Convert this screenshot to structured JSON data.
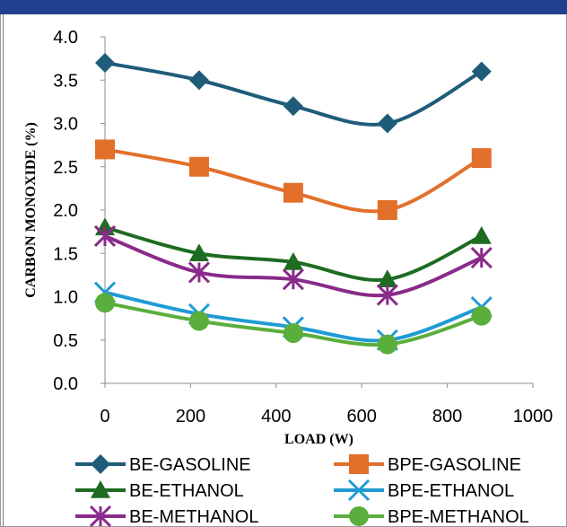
{
  "chart_data": {
    "type": "line",
    "title": "",
    "xlabel": "LOAD (W)",
    "ylabel": "CARBON MONOXIDE (%)",
    "xlim": [
      0,
      1000
    ],
    "ylim": [
      0,
      4
    ],
    "x_ticks": [
      "0",
      "200",
      "400",
      "600",
      "800",
      "1000"
    ],
    "y_ticks": [
      "0.0",
      "0.5",
      "1.0",
      "1.5",
      "2.0",
      "2.5",
      "3.0",
      "3.5",
      "4.0"
    ],
    "grid": false,
    "legend_position": "bottom",
    "x": [
      0,
      220,
      440,
      660,
      880
    ],
    "series": [
      {
        "name": "BE-GASOLINE",
        "values": [
          3.7,
          3.5,
          3.2,
          3.0,
          3.6
        ],
        "color": "#1f5c7a",
        "marker": "diamond"
      },
      {
        "name": "BPE-GASOLINE",
        "values": [
          2.7,
          2.5,
          2.2,
          2.0,
          2.6
        ],
        "color": "#e2702b",
        "marker": "square"
      },
      {
        "name": "BE-ETHANOL",
        "values": [
          1.8,
          1.5,
          1.4,
          1.2,
          1.7
        ],
        "color": "#1e6b22",
        "marker": "triangle"
      },
      {
        "name": "BPE-ETHANOL",
        "values": [
          1.05,
          0.8,
          0.65,
          0.5,
          0.88
        ],
        "color": "#1f9bd4",
        "marker": "x"
      },
      {
        "name": "BE-METHANOL",
        "values": [
          1.7,
          1.28,
          1.2,
          1.02,
          1.45
        ],
        "color": "#8a2a8a",
        "marker": "star"
      },
      {
        "name": "BPE-METHANOL",
        "values": [
          0.93,
          0.72,
          0.58,
          0.45,
          0.78
        ],
        "color": "#5aae3c",
        "marker": "circle"
      }
    ]
  }
}
